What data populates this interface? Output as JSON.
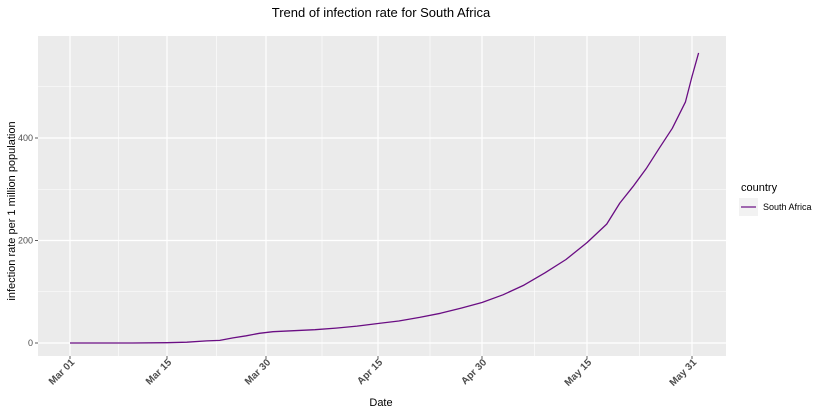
{
  "chart_data": {
    "type": "line",
    "title": "Trend of infection rate for South Africa",
    "xlabel": "Date",
    "ylabel": "infection rate per 1 million population",
    "x_ticks": [
      "Mar 01",
      "Mar 15",
      "Mar 30",
      "Apr 15",
      "Apr 30",
      "May 15",
      "May 31"
    ],
    "y_ticks": [
      0,
      200,
      400
    ],
    "ylim": [
      -22,
      590
    ],
    "grid": true,
    "panel_color": "#ebebeb",
    "grid_color": "#ffffff",
    "legend": {
      "title": "country",
      "placement": "right"
    },
    "series": [
      {
        "name": "South Africa",
        "color": "#6a0d83",
        "points": [
          [
            "Mar 01",
            0
          ],
          [
            "Mar 05",
            0
          ],
          [
            "Mar 10",
            0
          ],
          [
            "Mar 15",
            0.5
          ],
          [
            "Mar 18",
            1.5
          ],
          [
            "Mar 21",
            4
          ],
          [
            "Mar 23",
            5
          ],
          [
            "Mar 25",
            10
          ],
          [
            "Mar 27",
            14
          ],
          [
            "Mar 29",
            19
          ],
          [
            "Mar 31",
            22
          ],
          [
            "Apr 03",
            24
          ],
          [
            "Apr 06",
            26
          ],
          [
            "Apr 09",
            29
          ],
          [
            "Apr 12",
            33
          ],
          [
            "Apr 15",
            38
          ],
          [
            "Apr 18",
            43
          ],
          [
            "Apr 21",
            50
          ],
          [
            "Apr 24",
            58
          ],
          [
            "Apr 27",
            68
          ],
          [
            "Apr 30",
            79
          ],
          [
            "May 03",
            94
          ],
          [
            "May 06",
            113
          ],
          [
            "May 09",
            137
          ],
          [
            "May 12",
            163
          ],
          [
            "May 15",
            196
          ],
          [
            "May 18",
            232
          ],
          [
            "May 20",
            273
          ],
          [
            "May 22",
            305
          ],
          [
            "May 24",
            340
          ],
          [
            "May 26",
            380
          ],
          [
            "May 28",
            419
          ],
          [
            "May 30",
            470
          ],
          [
            "May 31",
            520
          ],
          [
            "Jun 01",
            566
          ]
        ]
      }
    ]
  }
}
